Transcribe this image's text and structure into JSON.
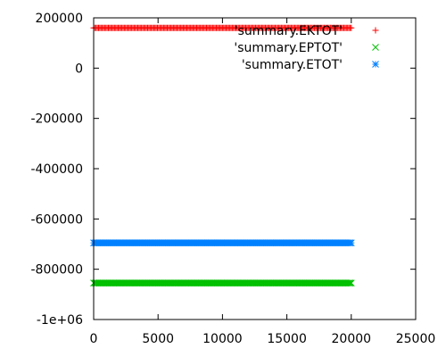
{
  "chart_data": {
    "type": "scatter",
    "title": "",
    "xlabel": "",
    "ylabel": "",
    "xlim": [
      0,
      25000
    ],
    "ylim": [
      -1000000,
      200000
    ],
    "x_ticks": [
      0,
      5000,
      10000,
      15000,
      20000,
      25000
    ],
    "x_tick_labels": [
      "0",
      "5000",
      "10000",
      "15000",
      "20000",
      "25000"
    ],
    "y_ticks": [
      -1000000,
      -800000,
      -600000,
      -400000,
      -200000,
      0,
      200000
    ],
    "y_tick_labels": [
      "-1e+06",
      "-800000",
      "-600000",
      "-400000",
      "-200000",
      "0",
      "200000"
    ],
    "grid": false,
    "legend_position": "top-right",
    "series": [
      {
        "name": "'summary.EKTOT'",
        "color": "#ff0000",
        "marker": "plus",
        "x_range": [
          0,
          20000
        ],
        "value": 160000
      },
      {
        "name": "'summary.EPTOT'",
        "color": "#00c000",
        "marker": "cross",
        "x_range": [
          0,
          20000
        ],
        "value": -855000
      },
      {
        "name": "'summary.ETOT'",
        "color": "#0080ff",
        "marker": "star",
        "x_range": [
          0,
          20000
        ],
        "value": -695000
      }
    ]
  }
}
